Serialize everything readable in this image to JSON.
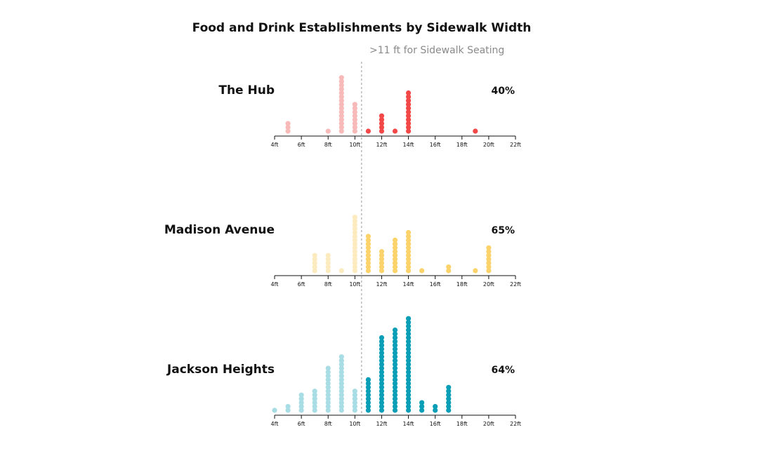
{
  "chart_data": {
    "type": "scatter",
    "title": "Food and Drink Establishments by Sidewalk Width",
    "reference_line": {
      "x": 10.5,
      "label": ">11 ft for Sidewalk Seating"
    },
    "x_domain": [
      4,
      22
    ],
    "tick_values": [
      4,
      6,
      8,
      10,
      12,
      14,
      16,
      18,
      20,
      22
    ],
    "tick_labels": [
      "4ft",
      "6ft",
      "8ft",
      "10ft",
      "12ft",
      "14ft",
      "16ft",
      "18ft",
      "20ft",
      "22ft"
    ],
    "panels": [
      {
        "name": "The Hub",
        "percent": "40%",
        "color": "#f24848",
        "light_color": "#f8b9b9",
        "counts": [
          {
            "x": 5,
            "n": 3
          },
          {
            "x": 8,
            "n": 1
          },
          {
            "x": 9,
            "n": 15
          },
          {
            "x": 10,
            "n": 8
          },
          {
            "x": 11,
            "n": 1
          },
          {
            "x": 12,
            "n": 5
          },
          {
            "x": 13,
            "n": 1
          },
          {
            "x": 14,
            "n": 11
          },
          {
            "x": 19,
            "n": 1
          }
        ]
      },
      {
        "name": "Madison Avenue",
        "percent": "65%",
        "color": "#fbd36a",
        "light_color": "#fdebc0",
        "counts": [
          {
            "x": 7,
            "n": 5
          },
          {
            "x": 8,
            "n": 5
          },
          {
            "x": 9,
            "n": 1
          },
          {
            "x": 10,
            "n": 15
          },
          {
            "x": 11,
            "n": 10
          },
          {
            "x": 12,
            "n": 6
          },
          {
            "x": 13,
            "n": 9
          },
          {
            "x": 14,
            "n": 11
          },
          {
            "x": 15,
            "n": 1
          },
          {
            "x": 17,
            "n": 2
          },
          {
            "x": 19,
            "n": 1
          },
          {
            "x": 20,
            "n": 7
          }
        ]
      },
      {
        "name": "Jackson Heights",
        "percent": "64%",
        "color": "#0a9fb7",
        "light_color": "#a9dde5",
        "counts": [
          {
            "x": 4,
            "n": 1
          },
          {
            "x": 5,
            "n": 2
          },
          {
            "x": 6,
            "n": 5
          },
          {
            "x": 7,
            "n": 6
          },
          {
            "x": 8,
            "n": 12
          },
          {
            "x": 9,
            "n": 15
          },
          {
            "x": 10,
            "n": 6
          },
          {
            "x": 11,
            "n": 9
          },
          {
            "x": 12,
            "n": 20
          },
          {
            "x": 13,
            "n": 22
          },
          {
            "x": 14,
            "n": 25
          },
          {
            "x": 15,
            "n": 3
          },
          {
            "x": 16,
            "n": 2
          },
          {
            "x": 17,
            "n": 7
          }
        ]
      }
    ]
  }
}
